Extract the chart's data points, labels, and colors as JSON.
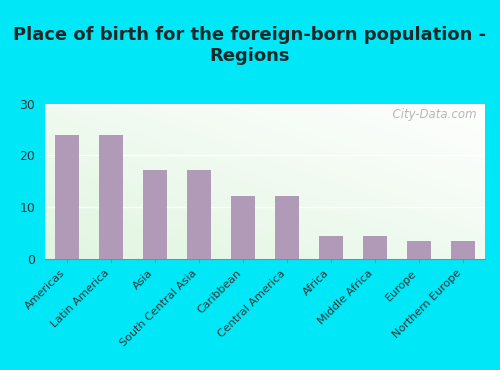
{
  "title": "Place of birth for the foreign-born population -\nRegions",
  "categories": [
    "Americas",
    "Latin America",
    "Asia",
    "South Central Asia",
    "Caribbean",
    "Central America",
    "Africa",
    "Middle Africa",
    "Europe",
    "Northern Europe"
  ],
  "values": [
    24.0,
    24.0,
    17.2,
    17.2,
    12.2,
    12.2,
    4.5,
    4.5,
    3.5,
    3.5
  ],
  "bar_color": "#b09ab8",
  "ylim": [
    0,
    30
  ],
  "yticks": [
    0,
    10,
    20,
    30
  ],
  "background_outer": "#00e8f8",
  "title_fontsize": 13,
  "title_color": "#1a2a2a",
  "tick_fontsize": 8,
  "ytick_fontsize": 9,
  "watermark": "  City-Data.com",
  "watermark_icon": "●"
}
